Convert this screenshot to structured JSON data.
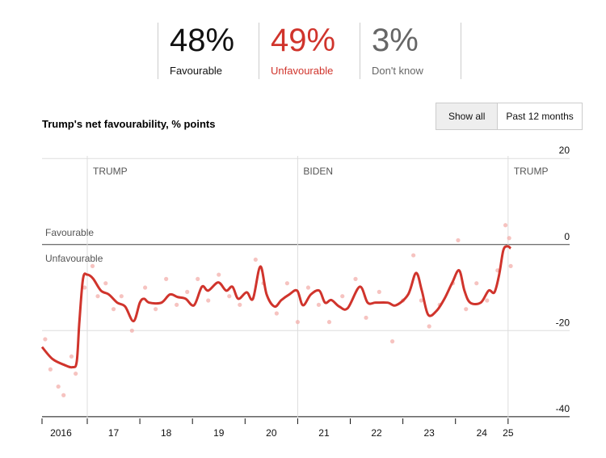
{
  "stats": [
    {
      "value": "48%",
      "label": "Favourable",
      "color": "#111111"
    },
    {
      "value": "49%",
      "label": "Unfavourable",
      "color": "#d0342c"
    },
    {
      "value": "3%",
      "label": "Don't know",
      "color": "#666666"
    }
  ],
  "buttons": [
    "Show all",
    "Past 12 months"
  ],
  "chart_data": {
    "type": "line",
    "title": "Trump's net favourability, % points",
    "xlim": [
      2016.14,
      2026.17
    ],
    "ylim": [
      -40.4,
      20.6
    ],
    "yticks": [
      20,
      0,
      -20,
      -40
    ],
    "xticks": [
      {
        "value": 2016.5,
        "label": "2016"
      },
      {
        "value": 2017.5,
        "label": "17"
      },
      {
        "value": 2018.5,
        "label": "18"
      },
      {
        "value": 2019.5,
        "label": "19"
      },
      {
        "value": 2020.5,
        "label": "20"
      },
      {
        "value": 2021.5,
        "label": "21"
      },
      {
        "value": 2022.5,
        "label": "22"
      },
      {
        "value": 2023.5,
        "label": "23"
      },
      {
        "value": 2024.5,
        "label": "24"
      },
      {
        "value": 2025,
        "label": "25"
      }
    ],
    "xminor_ticks": [
      2017,
      2018,
      2019,
      2020,
      2021,
      2022,
      2023,
      2024,
      2025
    ],
    "grid": true,
    "presidencies": [
      {
        "label": "TRUMP",
        "x": 2017.0
      },
      {
        "label": "BIDEN",
        "x": 2021.0
      },
      {
        "label": "TRUMP",
        "x": 2025.0
      }
    ],
    "zone_labels": [
      "Favourable",
      "Unfavourable"
    ],
    "line": {
      "color": "#d0342c",
      "x": [
        2016.14,
        2016.34,
        2016.57,
        2016.72,
        2016.8,
        2016.85,
        2016.92,
        2017.0,
        2017.11,
        2017.26,
        2017.41,
        2017.57,
        2017.72,
        2017.88,
        2018.0,
        2018.08,
        2018.18,
        2018.41,
        2018.57,
        2018.72,
        2018.87,
        2019.03,
        2019.18,
        2019.3,
        2019.49,
        2019.64,
        2019.76,
        2019.87,
        2020.03,
        2020.15,
        2020.29,
        2020.41,
        2020.56,
        2020.69,
        2020.84,
        2020.99,
        2021.1,
        2021.25,
        2021.41,
        2021.52,
        2021.64,
        2021.79,
        2021.95,
        2022.18,
        2022.33,
        2022.48,
        2022.71,
        2022.87,
        2023.1,
        2023.25,
        2023.36,
        2023.48,
        2023.64,
        2023.79,
        2023.94,
        2024.07,
        2024.17,
        2024.28,
        2024.48,
        2024.63,
        2024.74,
        2024.83,
        2024.91,
        2024.99,
        2025.05
      ],
      "values": [
        -23.8,
        -26.6,
        -28,
        -28.5,
        -27.2,
        -18,
        -7.9,
        -7,
        -7.9,
        -10.7,
        -11.6,
        -13.5,
        -14.4,
        -17.8,
        -13.5,
        -12.6,
        -13.5,
        -13.5,
        -11.6,
        -12.2,
        -12.6,
        -14.1,
        -9.8,
        -10.7,
        -8.8,
        -10.7,
        -9.8,
        -12.6,
        -11.1,
        -12.6,
        -5.1,
        -11.6,
        -14.4,
        -12.9,
        -11.6,
        -10.7,
        -14.1,
        -11.6,
        -10.7,
        -13.5,
        -12.9,
        -14.4,
        -14.8,
        -9.8,
        -13.5,
        -13.5,
        -13.5,
        -14.1,
        -11.6,
        -6.6,
        -10.7,
        -16.3,
        -15.4,
        -12.6,
        -8.8,
        -6,
        -10.7,
        -13.5,
        -13.5,
        -10.7,
        -11.1,
        -7,
        -1.3,
        -0.4,
        -0.9
      ]
    },
    "points": {
      "color": "#f2a9a5",
      "x": [
        2016.2,
        2016.3,
        2016.45,
        2016.55,
        2016.7,
        2016.78,
        2016.95,
        2017.1,
        2017.2,
        2017.35,
        2017.5,
        2017.65,
        2017.85,
        2018.1,
        2018.3,
        2018.5,
        2018.7,
        2018.9,
        2019.1,
        2019.3,
        2019.5,
        2019.7,
        2019.9,
        2020.2,
        2020.35,
        2020.6,
        2020.8,
        2021.0,
        2021.2,
        2021.4,
        2021.6,
        2021.85,
        2022.1,
        2022.3,
        2022.55,
        2022.8,
        2023.0,
        2023.2,
        2023.35,
        2023.5,
        2023.7,
        2023.95,
        2024.05,
        2024.2,
        2024.4,
        2024.6,
        2024.8,
        2024.95,
        2025.02,
        2025.05
      ],
      "values": [
        -22,
        -29,
        -33,
        -35,
        -26,
        -30,
        -10,
        -5,
        -12,
        -9,
        -15,
        -12,
        -20,
        -10,
        -15,
        -8,
        -14,
        -11,
        -8,
        -13,
        -7,
        -12,
        -14,
        -3.5,
        -9,
        -16,
        -9,
        -18,
        -10,
        -14,
        -18,
        -12,
        -8,
        -17,
        -11,
        -22.5,
        -13,
        -2.5,
        -13,
        -19,
        -14,
        -9,
        1,
        -15,
        -9,
        -13,
        -6,
        4.5,
        1.5,
        -5
      ]
    }
  }
}
